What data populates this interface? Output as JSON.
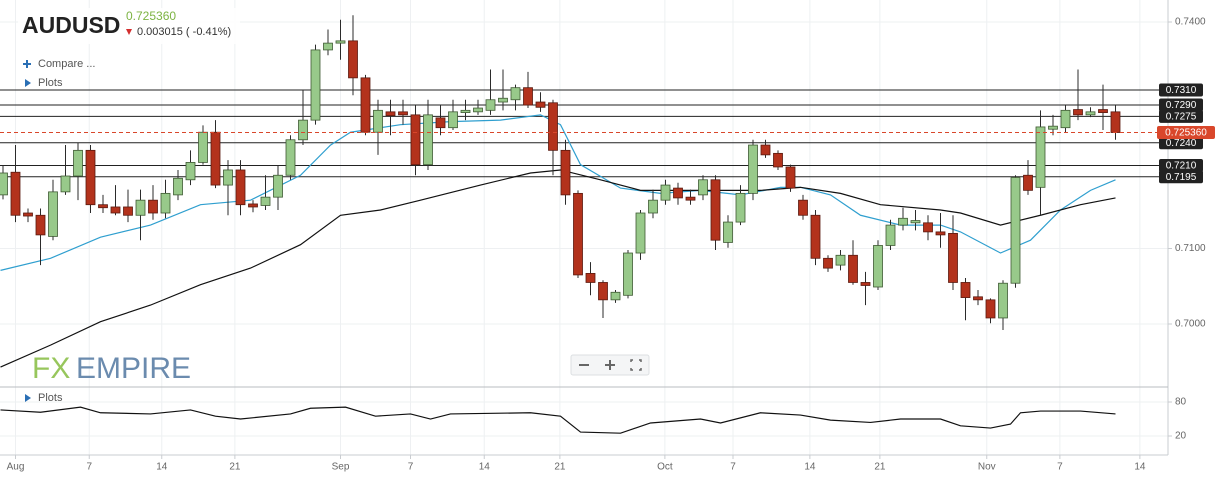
{
  "header": {
    "symbol": "AUDUSD",
    "price": "0.725360",
    "change": "0.003015 ( -0.41%)"
  },
  "toolbar": {
    "compare": "Compare ...",
    "plots": "Plots"
  },
  "watermark": {
    "fx": "FX",
    "empire": "EMPIRE"
  },
  "chart_data": [
    {
      "type": "candlestick",
      "up_color": "#98c98a",
      "down_color": "#b3321c",
      "xlim": [
        -0.24,
        93.2
      ],
      "xticks": [
        {
          "value": 1,
          "label": "Aug"
        },
        {
          "value": 6.9,
          "label": "7"
        },
        {
          "value": 12.7,
          "label": "14"
        },
        {
          "value": 18.55,
          "label": "21"
        },
        {
          "value": 27,
          "label": "Sep"
        },
        {
          "value": 32.6,
          "label": "7"
        },
        {
          "value": 38.5,
          "label": "14"
        },
        {
          "value": 44.55,
          "label": "21"
        },
        {
          "value": 52.95,
          "label": "Oct"
        },
        {
          "value": 58.4,
          "label": "7"
        },
        {
          "value": 64.55,
          "label": "14"
        },
        {
          "value": 70.15,
          "label": "21"
        },
        {
          "value": 78.7,
          "label": "Nov"
        },
        {
          "value": 84.55,
          "label": "7"
        },
        {
          "value": 90.95,
          "label": "14"
        }
      ],
      "ylim": [
        0.69192,
        0.74225
      ],
      "yticks": [
        {
          "value": 0.74,
          "label": "0.7400"
        },
        {
          "value": 0.71,
          "label": "0.7100"
        },
        {
          "value": 0.7,
          "label": "0.7000"
        }
      ],
      "grid": true,
      "open": [
        0.7171,
        0.7201,
        0.7147,
        0.7144,
        0.7116,
        0.7175,
        0.7196,
        0.723,
        0.7158,
        0.7155,
        0.7155,
        0.7144,
        0.7164,
        0.7147,
        0.7171,
        0.7191,
        0.7214,
        0.7254,
        0.7184,
        0.7204,
        0.7159,
        0.7157,
        0.7168,
        0.7197,
        0.7244,
        0.727,
        0.7363,
        0.7372,
        0.7375,
        0.7326,
        0.7254,
        0.7281,
        0.7281,
        0.7277,
        0.7211,
        0.7273,
        0.726,
        0.728,
        0.7281,
        0.7283,
        0.7294,
        0.7297,
        0.7313,
        0.7294,
        0.7293,
        0.723,
        0.7173,
        0.7067,
        0.7055,
        0.7032,
        0.7038,
        0.7094,
        0.7147,
        0.7164,
        0.718,
        0.7168,
        0.7171,
        0.7191,
        0.7108,
        0.7135,
        0.7173,
        0.7237,
        0.7226,
        0.7208,
        0.7164,
        0.7144,
        0.7087,
        0.7078,
        0.7091,
        0.7055,
        0.7049,
        0.7104,
        0.7131,
        0.7134,
        0.7134,
        0.7122,
        0.712,
        0.7055,
        0.7036,
        0.7032,
        0.7008,
        0.7054,
        0.7197,
        0.7181,
        0.7258,
        0.726,
        0.7284,
        0.7277,
        0.7284,
        0.7281
      ],
      "high": [
        0.721,
        0.7237,
        0.7153,
        0.7153,
        0.7191,
        0.7237,
        0.724,
        0.7237,
        0.7171,
        0.7184,
        0.7178,
        0.7178,
        0.7184,
        0.7191,
        0.7204,
        0.723,
        0.7263,
        0.727,
        0.7217,
        0.7217,
        0.7164,
        0.7197,
        0.721,
        0.725,
        0.731,
        0.737,
        0.739,
        0.7403,
        0.7409,
        0.733,
        0.7297,
        0.7297,
        0.7297,
        0.729,
        0.7297,
        0.729,
        0.7297,
        0.7297,
        0.7297,
        0.7337,
        0.7337,
        0.7317,
        0.7334,
        0.7307,
        0.7297,
        0.7244,
        0.7177,
        0.7082,
        0.7058,
        0.7045,
        0.7098,
        0.7151,
        0.7178,
        0.7191,
        0.7187,
        0.7178,
        0.7197,
        0.7197,
        0.7144,
        0.7184,
        0.7244,
        0.7244,
        0.723,
        0.7211,
        0.7171,
        0.7151,
        0.7091,
        0.7098,
        0.7111,
        0.7069,
        0.7111,
        0.7138,
        0.7154,
        0.7151,
        0.7144,
        0.7147,
        0.7144,
        0.7061,
        0.7045,
        0.7034,
        0.7058,
        0.7197,
        0.7217,
        0.7283,
        0.7277,
        0.729,
        0.7337,
        0.7287,
        0.7317,
        0.729
      ],
      "low": [
        0.7165,
        0.7135,
        0.7135,
        0.7078,
        0.7111,
        0.7171,
        0.7164,
        0.7147,
        0.7147,
        0.7144,
        0.7135,
        0.7111,
        0.7138,
        0.714,
        0.7164,
        0.7184,
        0.7211,
        0.718,
        0.7144,
        0.7144,
        0.7148,
        0.7151,
        0.7151,
        0.7191,
        0.7237,
        0.7264,
        0.7356,
        0.735,
        0.7303,
        0.725,
        0.7224,
        0.725,
        0.7264,
        0.7197,
        0.7204,
        0.725,
        0.7257,
        0.727,
        0.7277,
        0.7277,
        0.7283,
        0.7283,
        0.7286,
        0.7281,
        0.7197,
        0.7158,
        0.7061,
        0.7038,
        0.7008,
        0.7028,
        0.7034,
        0.7085,
        0.714,
        0.7158,
        0.7158,
        0.7158,
        0.7164,
        0.7098,
        0.7101,
        0.7131,
        0.7164,
        0.722,
        0.7204,
        0.7175,
        0.7138,
        0.7078,
        0.7069,
        0.7071,
        0.7052,
        0.7025,
        0.7045,
        0.7098,
        0.7124,
        0.7124,
        0.7111,
        0.7101,
        0.7045,
        0.7005,
        0.7025,
        0.7001,
        0.6992,
        0.7048,
        0.7171,
        0.7144,
        0.725,
        0.7254,
        0.727,
        0.7274,
        0.7257,
        0.7244
      ],
      "close": [
        0.72,
        0.7144,
        0.7143,
        0.7118,
        0.7175,
        0.7196,
        0.723,
        0.7158,
        0.7154,
        0.7147,
        0.7144,
        0.7164,
        0.7147,
        0.7173,
        0.7193,
        0.7214,
        0.7254,
        0.7184,
        0.7204,
        0.7158,
        0.7155,
        0.7168,
        0.7197,
        0.7244,
        0.727,
        0.7363,
        0.7372,
        0.7375,
        0.7326,
        0.7254,
        0.7283,
        0.7276,
        0.7277,
        0.7211,
        0.7277,
        0.726,
        0.7281,
        0.7283,
        0.7286,
        0.7297,
        0.7299,
        0.7313,
        0.729,
        0.7287,
        0.723,
        0.7171,
        0.7065,
        0.7055,
        0.7032,
        0.7042,
        0.7094,
        0.7147,
        0.7164,
        0.7184,
        0.7167,
        0.7164,
        0.7191,
        0.7111,
        0.7135,
        0.7173,
        0.7237,
        0.7224,
        0.7208,
        0.718,
        0.7144,
        0.7087,
        0.7074,
        0.7091,
        0.7055,
        0.7051,
        0.7104,
        0.7131,
        0.714,
        0.7137,
        0.7122,
        0.7118,
        0.7055,
        0.7035,
        0.7032,
        0.7008,
        0.7054,
        0.7194,
        0.7177,
        0.7261,
        0.7262,
        0.7283,
        0.7277,
        0.7281,
        0.728,
        0.72536
      ],
      "overlays": [
        {
          "color": "#2f9fcf",
          "x": [
            -0.2,
            3.8,
            7.8,
            11.8,
            15.8,
            19.8,
            23.8,
            26.2,
            27.8,
            31.8,
            35.8,
            39.8,
            43,
            44.6,
            46.2,
            49.4,
            52.6,
            55.8,
            59,
            62.2,
            63.8,
            66.2,
            68.6,
            71.8,
            75,
            76.6,
            79.8,
            82.2,
            84.6,
            87,
            89
          ],
          "values": [
            0.7071,
            0.7087,
            0.7115,
            0.7131,
            0.7158,
            0.7164,
            0.7197,
            0.7237,
            0.7254,
            0.7264,
            0.7268,
            0.727,
            0.7277,
            0.7264,
            0.7211,
            0.718,
            0.7173,
            0.7177,
            0.7171,
            0.7181,
            0.7181,
            0.7171,
            0.7144,
            0.7131,
            0.7131,
            0.7122,
            0.7094,
            0.7111,
            0.7151,
            0.7177,
            0.7191
          ]
        },
        {
          "color": "#111111",
          "x": [
            -0.2,
            3.8,
            7.8,
            11.8,
            15.8,
            19.8,
            23.8,
            27,
            30.2,
            33.4,
            38.2,
            42.2,
            44.6,
            47.8,
            51,
            55.8,
            60.6,
            63.8,
            67,
            70.2,
            75,
            76.6,
            79.8,
            83,
            86.2,
            89
          ],
          "values": [
            0.6943,
            0.6972,
            0.7003,
            0.7025,
            0.7052,
            0.7074,
            0.7105,
            0.7144,
            0.7151,
            0.7164,
            0.7184,
            0.72,
            0.7204,
            0.7191,
            0.7177,
            0.7177,
            0.7177,
            0.7181,
            0.7173,
            0.7158,
            0.7151,
            0.7147,
            0.7131,
            0.7144,
            0.7158,
            0.7167
          ]
        }
      ],
      "levels": [
        {
          "value": 0.731,
          "label": "0.7310"
        },
        {
          "value": 0.729,
          "label": "0.7290"
        },
        {
          "value": 0.7275,
          "label": "0.7275"
        },
        {
          "value": 0.724,
          "label": "0.7240"
        },
        {
          "value": 0.721,
          "label": "0.7210"
        },
        {
          "value": 0.7195,
          "label": "0.7195"
        }
      ],
      "level_color": "#222222",
      "current_price": {
        "value": 0.72536,
        "label": "0.725360"
      },
      "current_color": "#d9472b"
    },
    {
      "type": "line",
      "toolbar_plots": "Plots",
      "ylim": [
        -13.5,
        106.5
      ],
      "yticks": [
        20,
        80
      ],
      "grid": true,
      "series": [
        {
          "color": "#111111",
          "x": [
            -0.2,
            3,
            6.2,
            7.8,
            11.8,
            15,
            17,
            19,
            23,
            24.6,
            27.4,
            29.8,
            32.6,
            34.2,
            35.8,
            42.2,
            44.6,
            46.2,
            49.4,
            51.8,
            55.8,
            57.4,
            60.6,
            63.8,
            66.2,
            69.4,
            71.8,
            75,
            76.6,
            79,
            80.6,
            81.4,
            83,
            86.2,
            89
          ],
          "values": [
            66,
            62,
            71,
            61,
            59,
            66,
            55,
            50,
            59,
            69,
            71,
            55,
            59,
            50,
            59,
            61,
            55,
            27,
            25,
            43,
            50,
            43,
            61,
            57,
            48,
            44,
            50,
            50,
            38,
            34,
            41,
            61,
            64,
            64,
            59
          ]
        }
      ]
    }
  ]
}
